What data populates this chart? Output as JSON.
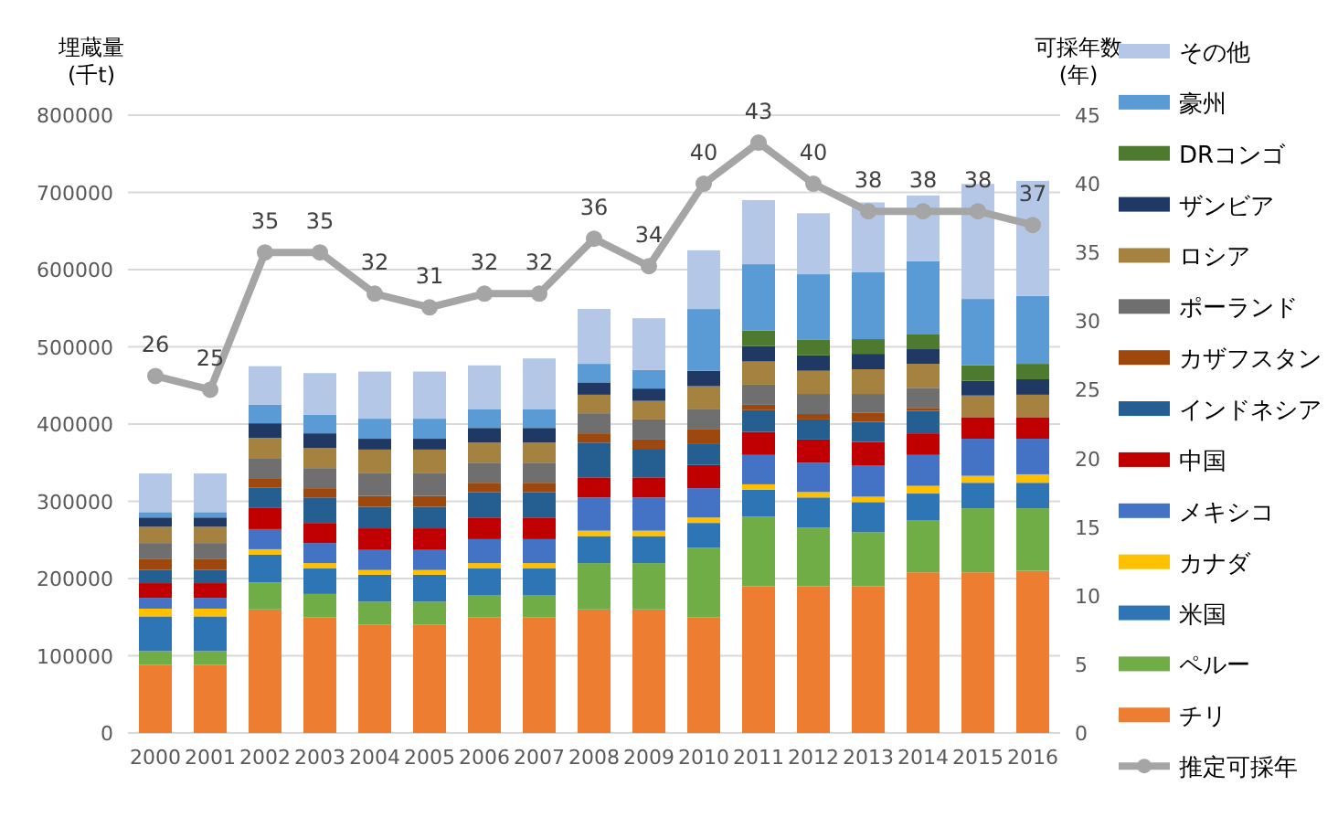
{
  "chart_data": {
    "type": "bar",
    "stacked": true,
    "ylabel": "埋蔵量\n(千t)",
    "y2label": "可採年数\n(年)",
    "categories": [
      "2000",
      "2001",
      "2002",
      "2003",
      "2004",
      "2005",
      "2006",
      "2007",
      "2008",
      "2009",
      "2010",
      "2011",
      "2012",
      "2013",
      "2014",
      "2015",
      "2016"
    ],
    "ylim": [
      0,
      800000
    ],
    "yticks": [
      0,
      100000,
      200000,
      300000,
      400000,
      500000,
      600000,
      700000,
      800000
    ],
    "y2lim": [
      0,
      45
    ],
    "y2ticks": [
      0,
      5,
      10,
      15,
      20,
      25,
      30,
      35,
      40,
      45
    ],
    "grid": "y",
    "legend": "right",
    "series": [
      {
        "name": "チリ",
        "color": "#ed7d31",
        "values": [
          88000,
          88000,
          160000,
          150000,
          140000,
          140000,
          150000,
          150000,
          160000,
          160000,
          150000,
          190000,
          190000,
          190000,
          208000,
          208000,
          210000
        ]
      },
      {
        "name": "ペルー",
        "color": "#70ad47",
        "values": [
          18000,
          18000,
          35000,
          30000,
          30000,
          30000,
          28000,
          28000,
          60000,
          60000,
          90000,
          90000,
          76000,
          70000,
          67000,
          83000,
          81000
        ]
      },
      {
        "name": "米国",
        "color": "#2e75b6",
        "values": [
          45000,
          45000,
          36000,
          33000,
          35000,
          35000,
          35000,
          35000,
          35000,
          35000,
          32000,
          35000,
          39000,
          39000,
          35000,
          33000,
          33000
        ]
      },
      {
        "name": "カナダ",
        "color": "#ffc000",
        "values": [
          10000,
          10000,
          7000,
          7000,
          6000,
          6000,
          7000,
          7000,
          7000,
          7000,
          7000,
          7000,
          7000,
          7000,
          10000,
          9000,
          11000
        ]
      },
      {
        "name": "メキシコ",
        "color": "#4472c4",
        "values": [
          14000,
          14000,
          26000,
          26000,
          26000,
          26000,
          31000,
          31000,
          43000,
          43000,
          38000,
          38000,
          38000,
          40000,
          40000,
          48000,
          46000
        ]
      },
      {
        "name": "中国",
        "color": "#c00000",
        "values": [
          19000,
          19000,
          28000,
          26000,
          28000,
          28000,
          28000,
          28000,
          26000,
          26000,
          30000,
          30000,
          30000,
          31000,
          28000,
          28000,
          28000
        ]
      },
      {
        "name": "インドネシア",
        "color": "#255e91",
        "values": [
          17000,
          17000,
          26000,
          33000,
          28000,
          28000,
          33000,
          33000,
          45000,
          37000,
          28000,
          28000,
          26000,
          26000,
          29000,
          0,
          0
        ]
      },
      {
        "name": "カザフスタン",
        "color": "#9e480e",
        "values": [
          14000,
          14000,
          12000,
          12000,
          14000,
          14000,
          12000,
          12000,
          12000,
          12000,
          18000,
          7000,
          7000,
          12000,
          4000,
          0,
          0
        ]
      },
      {
        "name": "ポーランド",
        "color": "#6f6f6f",
        "values": [
          21000,
          21000,
          26000,
          26000,
          30000,
          30000,
          26000,
          26000,
          26000,
          26000,
          26000,
          26000,
          26000,
          24000,
          26000,
          0,
          0
        ]
      },
      {
        "name": "ロシア",
        "color": "#a5823f",
        "values": [
          21000,
          21000,
          26000,
          26000,
          30000,
          30000,
          26000,
          26000,
          24000,
          24000,
          30000,
          30000,
          30000,
          32000,
          31000,
          28000,
          29000
        ]
      },
      {
        "name": "ザンビア",
        "color": "#203864",
        "values": [
          12000,
          12000,
          19000,
          19000,
          14000,
          14000,
          19000,
          19000,
          16000,
          16000,
          20000,
          20000,
          20000,
          20000,
          19000,
          19000,
          20000
        ]
      },
      {
        "name": "DRコンゴ",
        "color": "#4e7a2f",
        "values": [
          0,
          0,
          0,
          0,
          0,
          0,
          0,
          0,
          0,
          0,
          0,
          20000,
          20000,
          19000,
          19000,
          20000,
          20000
        ]
      },
      {
        "name": "豪州",
        "color": "#5b9bd5",
        "values": [
          7000,
          7000,
          24000,
          24000,
          26000,
          26000,
          24000,
          24000,
          24000,
          24000,
          80000,
          86000,
          85000,
          87000,
          95000,
          86000,
          88000
        ]
      },
      {
        "name": "その他",
        "color": "#b4c7e7",
        "values": [
          50000,
          50000,
          50000,
          54000,
          61000,
          61000,
          57000,
          66000,
          71000,
          67000,
          76000,
          83000,
          79000,
          90000,
          85000,
          149000,
          149000
        ]
      },
      {
        "name": "推定可採年",
        "type": "line",
        "axis": "y2",
        "color": "#a5a5a5",
        "marker": "circle",
        "data_labels": true,
        "values": [
          26,
          25,
          35,
          35,
          32,
          31,
          32,
          32,
          36,
          34,
          40,
          43,
          40,
          38,
          38,
          38,
          37
        ]
      }
    ]
  }
}
